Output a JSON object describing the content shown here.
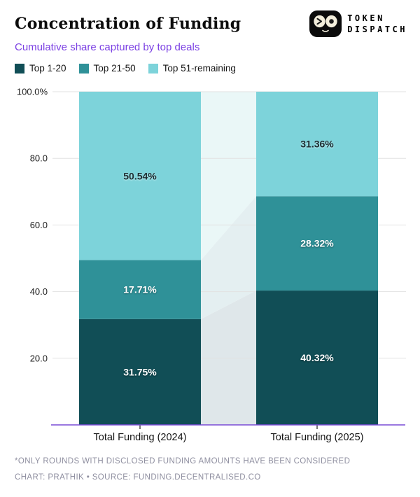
{
  "header": {
    "title": "Concentration of Funding",
    "subtitle": "Cumulative share captured by top deals"
  },
  "logo": {
    "line1": "TOKEN",
    "line2": "DISPATCH"
  },
  "chart_data": {
    "type": "bar",
    "stacked": true,
    "title": "Concentration of Funding",
    "subtitle": "Cumulative share captured by top deals",
    "categories": [
      "Total Funding (2024)",
      "Total Funding (2025)"
    ],
    "series": [
      {
        "name": "Top 1-20",
        "color": "#114e56",
        "connector_color": "#dfe7ea",
        "values": [
          31.75,
          40.32
        ],
        "labels": [
          "31.75%",
          "40.32%"
        ],
        "label_color": "#ffffff"
      },
      {
        "name": "Top 21-50",
        "color": "#2f9198",
        "connector_color": "#e4eff1",
        "values": [
          17.71,
          28.32
        ],
        "labels": [
          "17.71%",
          "28.32%"
        ],
        "label_color": "#ffffff"
      },
      {
        "name": "Top 51-remaining",
        "color": "#7dd3da",
        "connector_color": "#eaf7f7",
        "values": [
          50.54,
          31.36
        ],
        "labels": [
          "50.54%",
          "31.36%"
        ],
        "label_color": "#1c2b30"
      }
    ],
    "y_axis": {
      "range": [
        0,
        100
      ],
      "grid": true,
      "ticks": [
        {
          "value": 100,
          "label": "100.0%"
        },
        {
          "value": 80,
          "label": "80.0"
        },
        {
          "value": 60,
          "label": "60.0"
        },
        {
          "value": 40,
          "label": "40.0"
        },
        {
          "value": 20,
          "label": "20.0"
        }
      ]
    },
    "legend_position": "top-left",
    "colors": {
      "grid": "#e2e2e2",
      "axis_line": "#7a4bd6",
      "tick": "#4a4a4a"
    }
  },
  "footer": {
    "note": "*ONLY ROUNDS WITH DISCLOSED FUNDING AMOUNTS HAVE BEEN CONSIDERED",
    "credit": "CHART: PRATHIK • SOURCE: FUNDING.DECENTRALISED.CO"
  }
}
